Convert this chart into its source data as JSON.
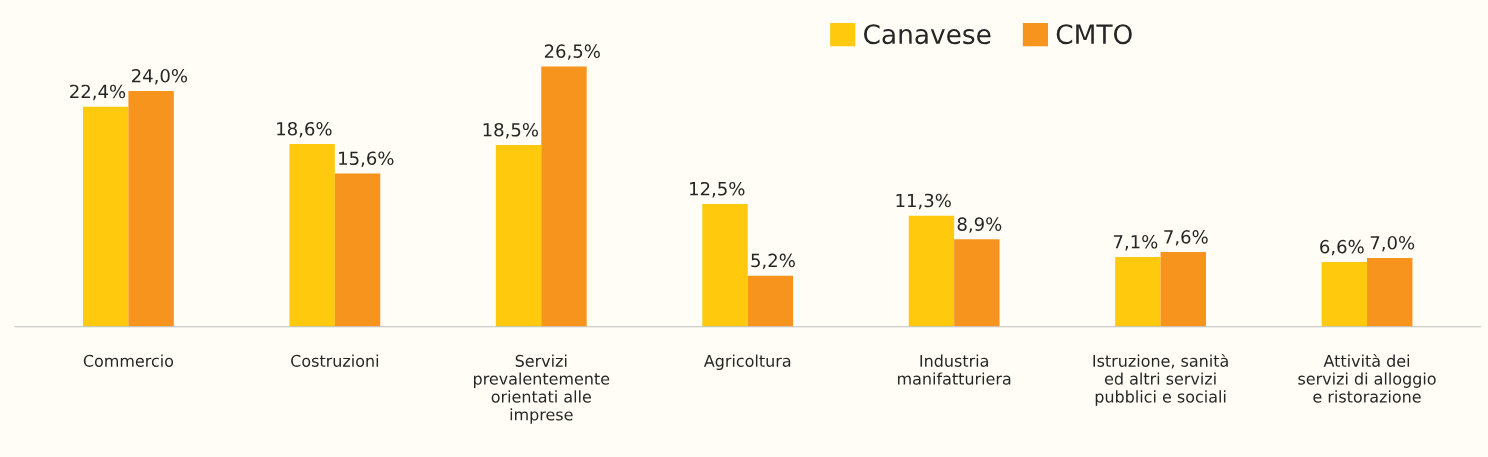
{
  "chart_data": {
    "type": "bar",
    "categories": [
      "Commercio",
      "Costruzioni",
      "Servizi\nprevalentemente\norientati alle\nimprese",
      "Agricoltura",
      "Industria\nmanifatturiera",
      "Istruzione, sanità\ned altri servizi\npubblici e sociali",
      "Attività dei\nservizi di alloggio\ne ristorazione"
    ],
    "series": [
      {
        "name": "Canavese",
        "color": "#ffc90e",
        "values": [
          22.4,
          18.6,
          18.5,
          12.5,
          11.3,
          7.1,
          6.6
        ],
        "value_labels": [
          "22,4%",
          "18,6%",
          "18,5%",
          "12,5%",
          "11,3%",
          "7,1%",
          "6,6%"
        ]
      },
      {
        "name": "CMTO",
        "color": "#f7941d",
        "values": [
          24.0,
          15.6,
          26.5,
          5.2,
          8.9,
          7.6,
          7.0
        ],
        "value_labels": [
          "24,0%",
          "15,6%",
          "26,5%",
          "5,2%",
          "8,9%",
          "7,6%",
          "7,0%"
        ]
      }
    ],
    "legend": "top",
    "grid": false
  }
}
